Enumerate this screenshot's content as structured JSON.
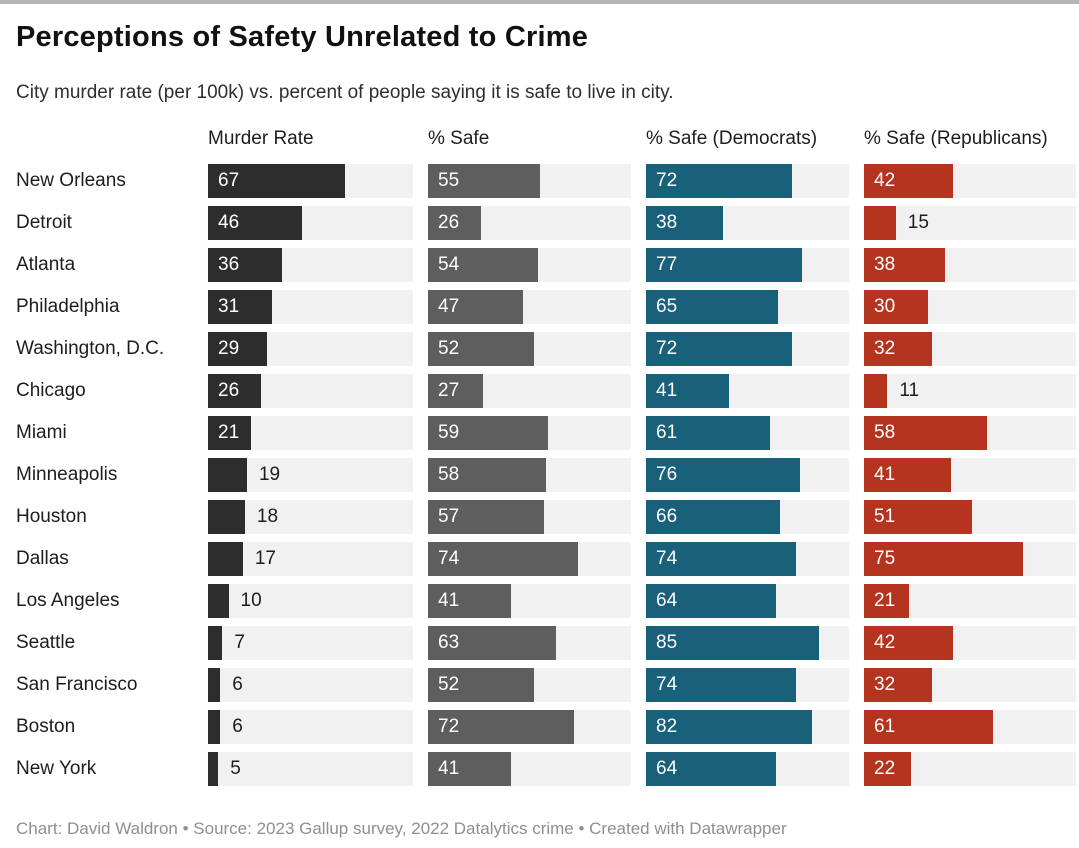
{
  "header": {
    "title": "Perceptions of Safety Unrelated to Crime",
    "subtitle": "City murder rate (per 100k) vs. percent of people saying it is safe to live in city."
  },
  "colors": {
    "dark": "#2d2d2d",
    "gray": "#5e5e5e",
    "democrat": "#19607a",
    "republican": "#b5341f",
    "track": "#f1f1f1",
    "top_rule": "#b5b5b5"
  },
  "chart_data": {
    "type": "bar",
    "orientation": "horizontal",
    "layout": "small-multiples: one bar column per series, shared city rows",
    "title": "Perceptions of Safety Unrelated to Crime",
    "subtitle": "City murder rate (per 100k) vs. percent of people saying it is safe to live in city.",
    "xlim": [
      0,
      100
    ],
    "grid": false,
    "value_labels": true,
    "categories": [
      "New Orleans",
      "Detroit",
      "Atlanta",
      "Philadelphia",
      "Washington, D.C.",
      "Chicago",
      "Miami",
      "Minneapolis",
      "Houston",
      "Dallas",
      "Los Angeles",
      "Seattle",
      "San Francisco",
      "Boston",
      "New York"
    ],
    "series": [
      {
        "name": "Murder Rate",
        "color_key": "dark",
        "values": [
          67,
          46,
          36,
          31,
          29,
          26,
          21,
          19,
          18,
          17,
          10,
          7,
          6,
          6,
          5
        ]
      },
      {
        "name": "% Safe",
        "color_key": "gray",
        "values": [
          55,
          26,
          54,
          47,
          52,
          27,
          59,
          58,
          57,
          74,
          41,
          63,
          52,
          72,
          41
        ]
      },
      {
        "name": "% Safe (Democrats)",
        "color_key": "democrat",
        "values": [
          72,
          38,
          77,
          65,
          72,
          41,
          61,
          76,
          66,
          74,
          64,
          85,
          74,
          82,
          64
        ]
      },
      {
        "name": "% Safe (Republicans)",
        "color_key": "republican",
        "values": [
          42,
          15,
          38,
          30,
          32,
          11,
          58,
          41,
          51,
          75,
          21,
          42,
          32,
          61,
          22
        ]
      }
    ]
  },
  "footer": {
    "text": "Chart: David Waldron • Source: 2023 Gallup survey, 2022 Datalytics crime • Created with Datawrapper"
  }
}
